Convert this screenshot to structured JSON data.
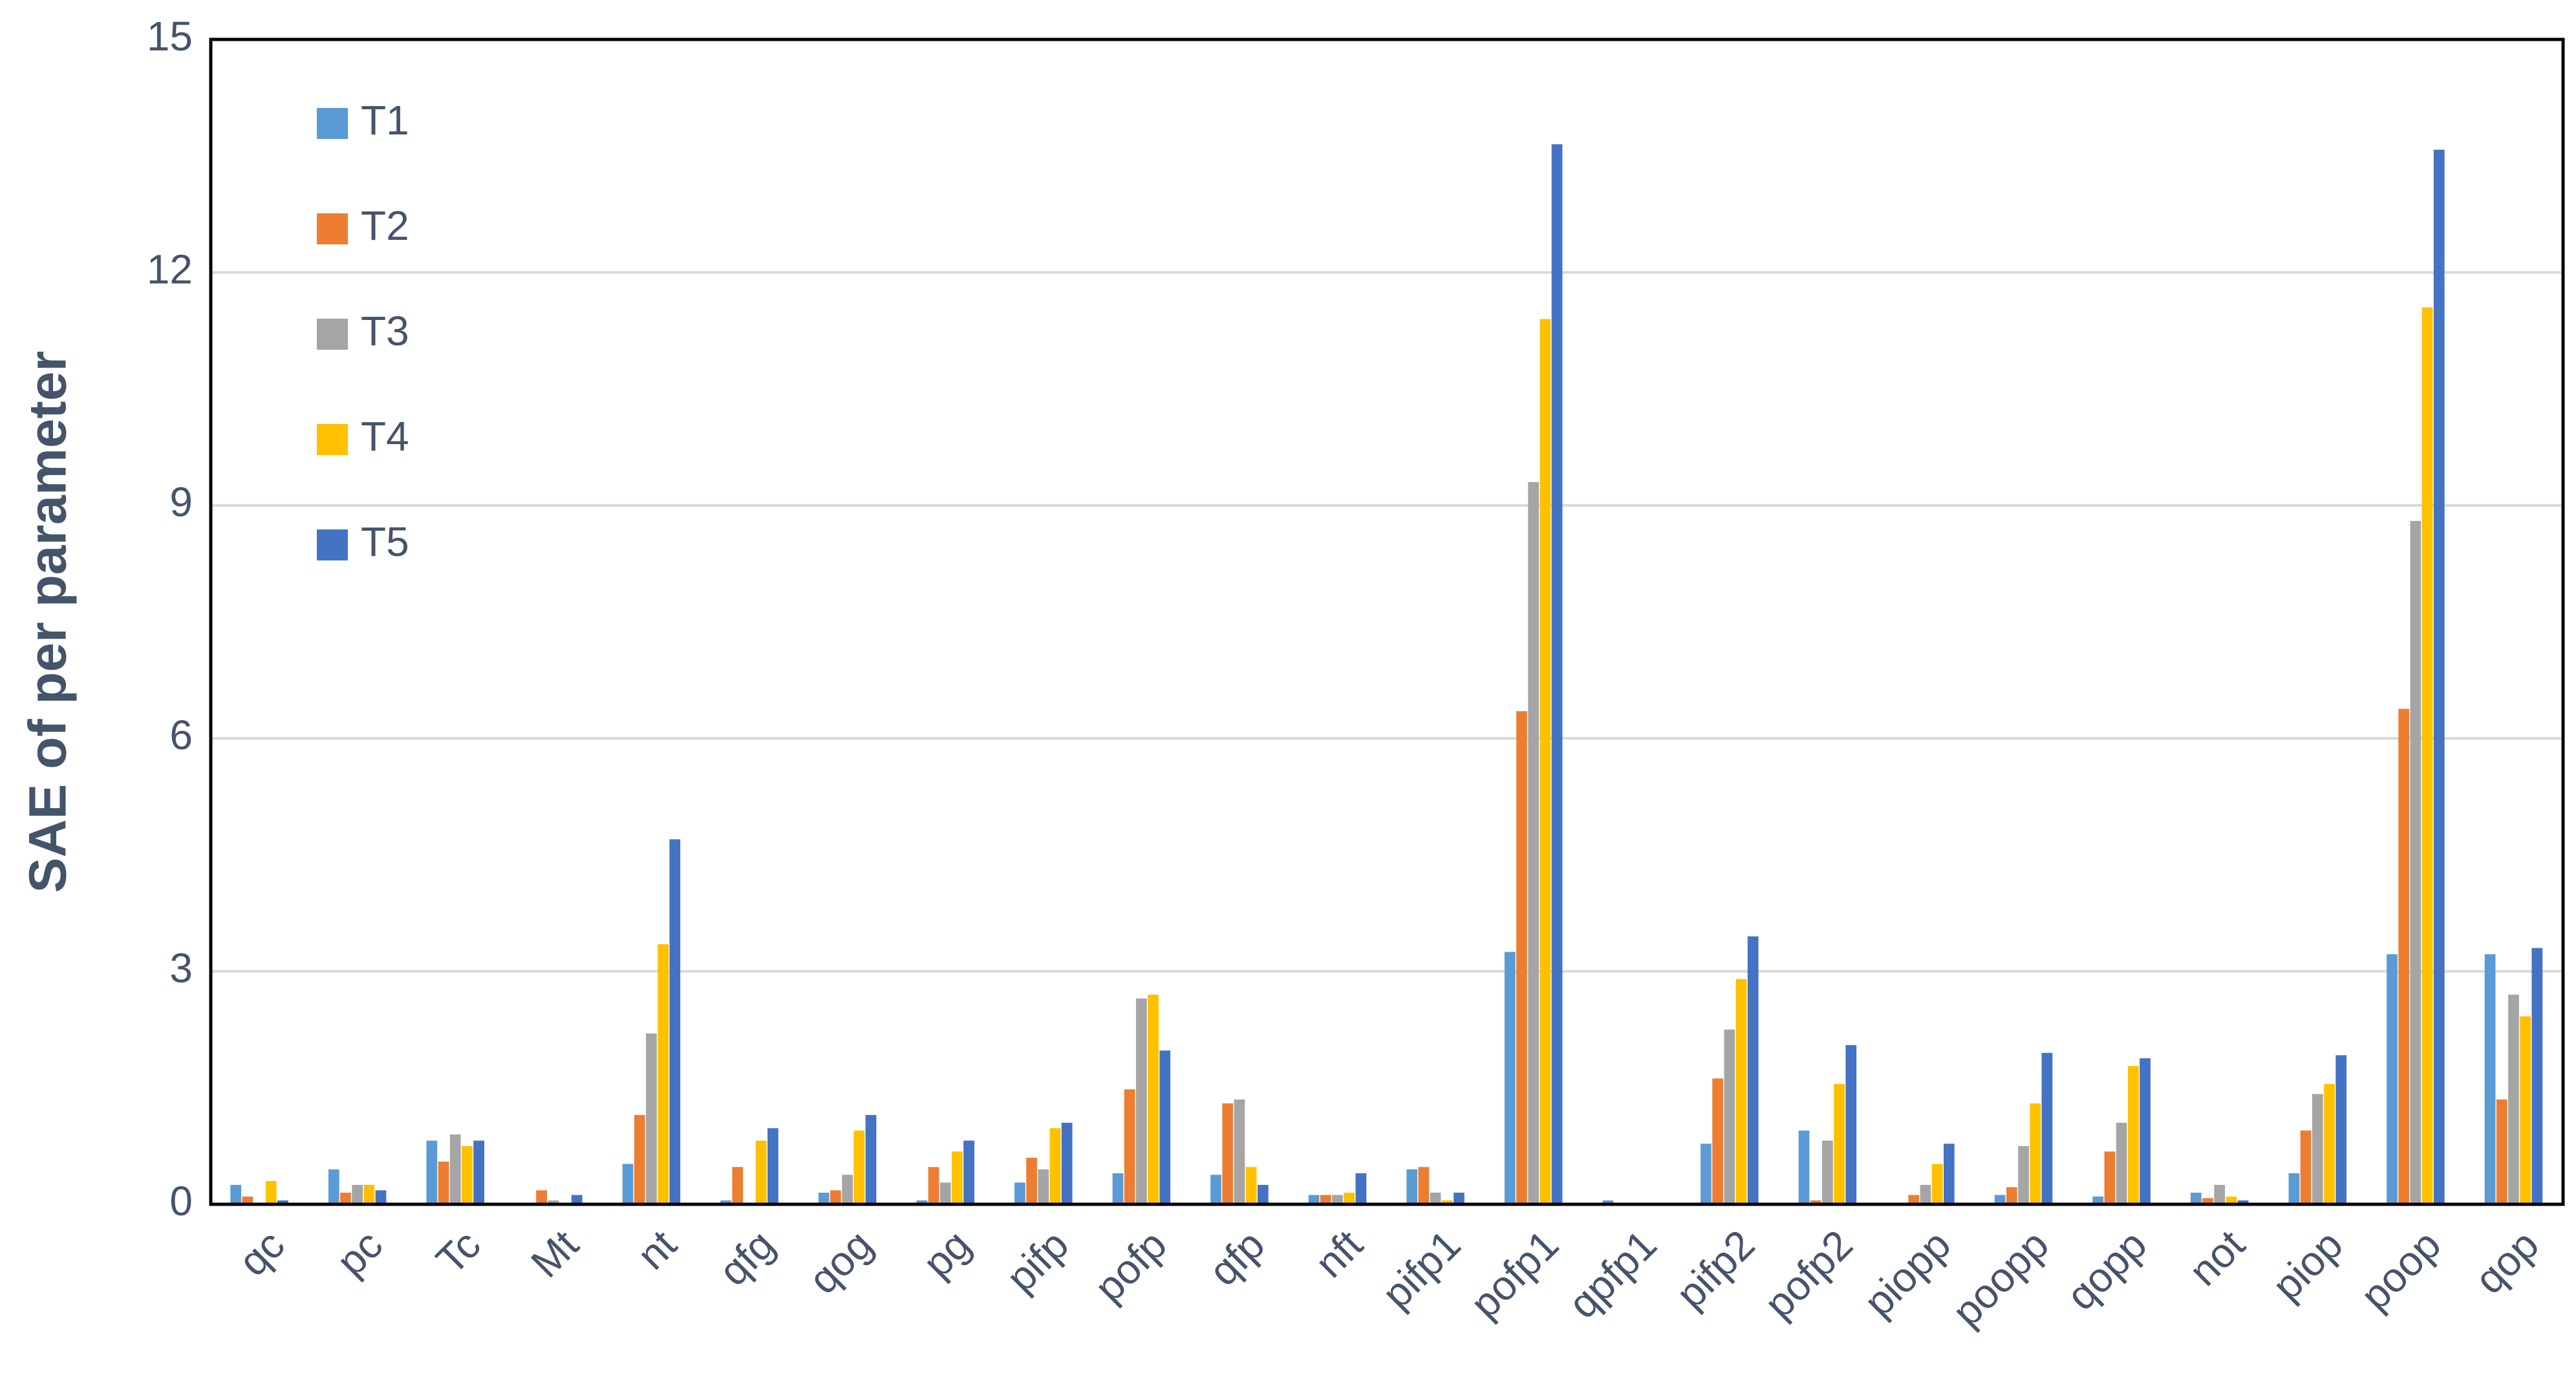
{
  "chart_data": {
    "type": "bar",
    "y_label": "SAE of per parameter",
    "categories": [
      "qc",
      "pc",
      "Tc",
      "Mt",
      "nt",
      "qfg",
      "qog",
      "pg",
      "pifp",
      "pofp",
      "qfp",
      "nft",
      "pifp1",
      "pofp1",
      "qpfp1",
      "pifp2",
      "pofp2",
      "piopp",
      "poopp",
      "qopp",
      "not",
      "piop",
      "poop",
      "qop"
    ],
    "series": [
      {
        "name": "T1",
        "color": "#5b9bd5",
        "values": [
          0.25,
          0.45,
          0.82,
          0.02,
          0.52,
          0.05,
          0.15,
          0.05,
          0.28,
          0.4,
          0.38,
          0.12,
          0.45,
          3.25,
          0.05,
          0.78,
          0.95,
          0.02,
          0.12,
          0.1,
          0.15,
          0.4,
          3.22,
          3.22
        ]
      },
      {
        "name": "T2",
        "color": "#ed7d31",
        "values": [
          0.1,
          0.15,
          0.55,
          0.18,
          1.15,
          0.48,
          0.18,
          0.48,
          0.6,
          1.48,
          1.3,
          0.12,
          0.48,
          6.35,
          0.01,
          1.62,
          0.05,
          0.12,
          0.22,
          0.68,
          0.08,
          0.95,
          6.38,
          1.35
        ]
      },
      {
        "name": "T3",
        "color": "#a5a5a5",
        "values": [
          0.02,
          0.25,
          0.9,
          0.05,
          2.2,
          0.02,
          0.38,
          0.28,
          0.45,
          2.65,
          1.35,
          0.12,
          0.15,
          9.3,
          0.01,
          2.25,
          0.82,
          0.25,
          0.75,
          1.05,
          0.25,
          1.42,
          8.8,
          2.7
        ]
      },
      {
        "name": "T4",
        "color": "#ffc000",
        "values": [
          0.3,
          0.25,
          0.75,
          0.02,
          3.35,
          0.82,
          0.95,
          0.68,
          0.98,
          2.7,
          0.48,
          0.15,
          0.05,
          11.4,
          0.01,
          2.9,
          1.55,
          0.52,
          1.3,
          1.78,
          0.1,
          1.55,
          11.55,
          2.42
        ]
      },
      {
        "name": "T5",
        "color": "#4472c4",
        "values": [
          0.05,
          0.18,
          0.82,
          0.12,
          4.7,
          0.98,
          1.15,
          0.82,
          1.05,
          1.98,
          0.25,
          0.4,
          0.15,
          13.65,
          0.01,
          3.45,
          2.05,
          0.78,
          1.95,
          1.88,
          0.05,
          1.92,
          13.58,
          3.3
        ]
      }
    ],
    "ylim": [
      0,
      15
    ],
    "yticks": [
      0,
      3,
      6,
      9,
      12,
      15
    ],
    "grid": true,
    "legend": "top-left"
  }
}
